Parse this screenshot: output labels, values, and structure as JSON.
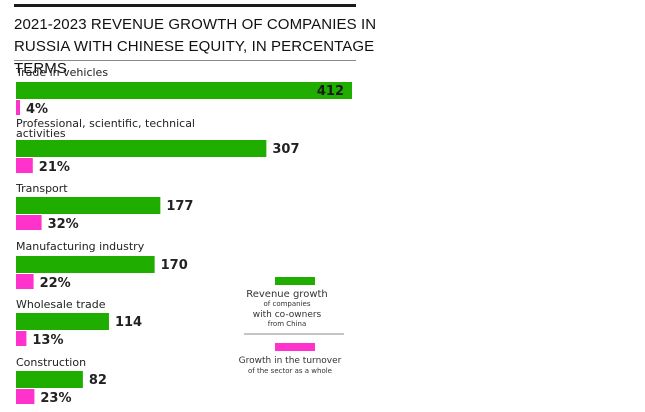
{
  "chart_data": {
    "type": "bar",
    "title": "2021-2023 REVENUE GROWTH OF COMPANIES IN RUSSIA WITH CHINESE EQUITY, IN PERCENTAGE TERMS",
    "categories": [
      "Trade in vehicles",
      "Professional, scientific, technical activities",
      "Transport",
      "Manufacturing industry",
      "Wholesale trade",
      "Construction"
    ],
    "category_lines": [
      [
        "Trade in vehicles"
      ],
      [
        "Professional, scientific, technical",
        "activities"
      ],
      [
        "Transport"
      ],
      [
        "Manufacturing industry"
      ],
      [
        "Wholesale trade"
      ],
      [
        "Construction"
      ]
    ],
    "series": [
      {
        "name": "Revenue growth of companies with co-owners from China",
        "legend_lines": [
          "Revenue growth",
          "of companies",
          "with co-owners",
          "from China"
        ],
        "color": "#1fae00",
        "values": [
          412,
          307,
          177,
          170,
          114,
          82
        ],
        "labels": [
          "412",
          "307",
          "177",
          "170",
          "114",
          "82"
        ]
      },
      {
        "name": "Growth in the turnover of the sector as a whole",
        "legend_lines": [
          "Growth in the turnover",
          "of the sector as a whole"
        ],
        "color": "#ff33cc",
        "values": [
          4,
          21,
          32,
          22,
          13,
          23
        ],
        "labels": [
          "4%",
          "21%",
          "32%",
          "22%",
          "13%",
          "23%"
        ]
      }
    ],
    "orientation": "horizontal",
    "legend_position": "right",
    "grid": false
  }
}
